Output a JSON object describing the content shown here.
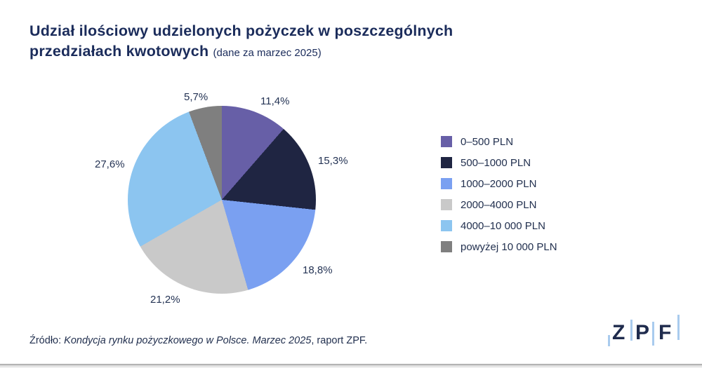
{
  "header": {
    "title_line1": "Udział ilościowy udzielonych pożyczek w poszczególnych",
    "title_line2": "przedziałach kwotowych",
    "title_suffix": "(dane za marzec 2025)"
  },
  "chart_data": {
    "type": "pie",
    "title": "Udział ilościowy udzielonych pożyczek w poszczególnych przedziałach kwotowych",
    "subtitle": "(dane za marzec 2025)",
    "start_angle_deg": 0,
    "direction": "clockwise",
    "legend_position": "right",
    "slices": [
      {
        "label": "0–500 PLN",
        "value": 11.4,
        "pct_label": "11,4%",
        "color": "#675FA7"
      },
      {
        "label": "500–1000 PLN",
        "value": 15.3,
        "pct_label": "15,3%",
        "color": "#1F2542"
      },
      {
        "label": "1000–2000 PLN",
        "value": 18.8,
        "pct_label": "18,8%",
        "color": "#7AA0F1"
      },
      {
        "label": "2000–4000 PLN",
        "value": 21.2,
        "pct_label": "21,2%",
        "color": "#C9C9C9"
      },
      {
        "label": "4000–10 000 PLN",
        "value": 27.6,
        "pct_label": "27,6%",
        "color": "#8CC5F0"
      },
      {
        "label": "powyżej 10 000 PLN",
        "value": 5.7,
        "pct_label": "5,7%",
        "color": "#7F7F7F"
      }
    ]
  },
  "footer": {
    "source_prefix": "Źródło: ",
    "source_italic": "Kondycja rynku pożyczkowego w Polsce. Marzec 2025",
    "source_suffix": ", raport ZPF."
  },
  "logo": {
    "letter_z": "Z",
    "letter_p": "P",
    "letter_f": "F"
  },
  "colors": {
    "title_text": "#1B2C5B",
    "body_text": "#22304F",
    "logo_letters": "#1F2B4D",
    "logo_bars": "#A9CBEE"
  }
}
